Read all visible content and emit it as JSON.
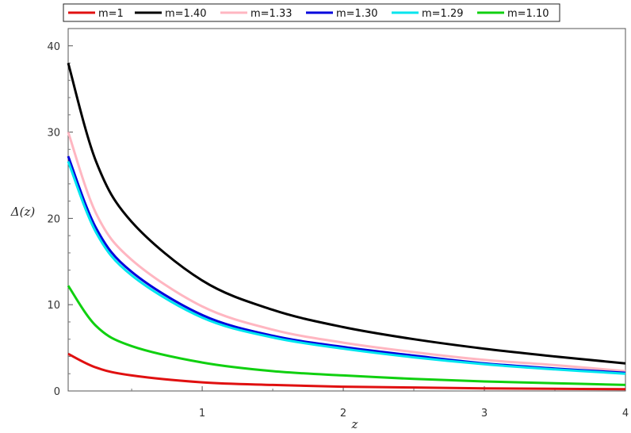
{
  "chart_data": {
    "type": "line",
    "xlabel": "z",
    "ylabel": "Δ(z)",
    "xlim": [
      0.05,
      4
    ],
    "ylim": [
      0,
      42
    ],
    "xticks": [
      1,
      2,
      3,
      4
    ],
    "yticks": [
      0,
      10,
      20,
      30,
      40
    ],
    "xtick_labels": [
      "1",
      "2",
      "3",
      "4"
    ],
    "ytick_labels": [
      "0",
      "10",
      "20",
      "30",
      "40"
    ],
    "grid": false,
    "legend_placement": "top",
    "x": [
      0.05,
      0.25,
      0.5,
      1,
      1.5,
      2,
      2.5,
      3,
      3.5,
      4
    ],
    "series": [
      {
        "name": "m=1",
        "color": "#e01010",
        "values": [
          4.3,
          2.7,
          1.8,
          1.0,
          0.7,
          0.5,
          0.4,
          0.3,
          0.25,
          0.2
        ]
      },
      {
        "name": "m=1.40",
        "color": "#000000",
        "values": [
          38.0,
          26.5,
          19.6,
          12.8,
          9.4,
          7.4,
          6.0,
          4.9,
          4.0,
          3.2
        ]
      },
      {
        "name": "m=1.33",
        "color": "#ffb6c1",
        "values": [
          30.0,
          20.5,
          15.2,
          9.8,
          7.1,
          5.6,
          4.5,
          3.6,
          3.0,
          2.3
        ]
      },
      {
        "name": "m=1.30",
        "color": "#0000dd",
        "values": [
          27.2,
          18.8,
          13.8,
          8.8,
          6.4,
          5.1,
          4.1,
          3.2,
          2.6,
          2.1
        ]
      },
      {
        "name": "m=1.29",
        "color": "#00e5ee",
        "values": [
          26.6,
          18.3,
          13.4,
          8.5,
          6.2,
          4.9,
          3.9,
          3.1,
          2.5,
          2.0
        ]
      },
      {
        "name": "m=1.10",
        "color": "#10d010",
        "values": [
          12.2,
          7.5,
          5.2,
          3.3,
          2.3,
          1.8,
          1.4,
          1.1,
          0.9,
          0.7
        ]
      }
    ]
  }
}
